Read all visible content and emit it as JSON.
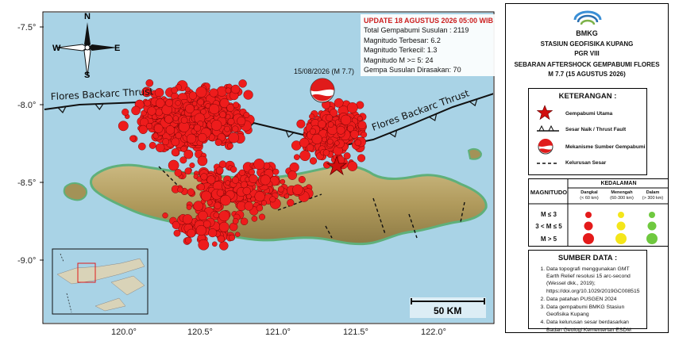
{
  "map": {
    "lat_ticks": [
      "-7.5°",
      "-8.0°",
      "-8.5°",
      "-9.0°"
    ],
    "lon_ticks": [
      "120.0°",
      "120.5°",
      "121.0°",
      "121.5°",
      "122.0°"
    ],
    "thrust_labels": [
      "Flores Backarc Thrust",
      "Flores Backarc Thrust"
    ],
    "mainshock_label": "15/08/2026 (M 7.7)",
    "scale_label": "50 KM",
    "compass": {
      "n": "N",
      "s": "S",
      "e": "E",
      "w": "W"
    },
    "colors": {
      "sea": "#a9d3e6",
      "land": "#b7a468",
      "event": "#ee1c1c"
    }
  },
  "info": {
    "title": "UPDATE 18 AGUSTUS 2026 05:00 WIB",
    "total": "Total Gempabumi Susulan : 2119",
    "max_mag": "Magnitudo Terbesar: 6.2",
    "min_mag": "Magnitudo Terkecil: 1.3",
    "mag_ge5": "Magnitudo M >= 5: 24",
    "felt": "Gempa Susulan Dirasakan: 70"
  },
  "legend": {
    "logo_text": "BMKG",
    "station": "STASIUN GEOFISIKA KUPANG",
    "region": "PGR VIII",
    "title1": "SEBARAN AFTERSHOCK GEMPABUMI FLORES",
    "title2": "M 7.7 (15 AGUSTUS 2026)",
    "keterangan_title": "KETERANGAN :",
    "items": {
      "main": "Gempabumi Utama",
      "fault": "Sesar Naik / Thrust Fault",
      "mech": "Mekanisme Sumber Gempabumi",
      "lineament": "Kelurusan Sesar"
    },
    "magnitude_header": "MAGNITUDO",
    "depth_header": "KEDALAMAN",
    "depth_cols": [
      {
        "name": "Dangkal",
        "range": "(< 60 km)",
        "color": "#e41a1a"
      },
      {
        "name": "Menengah",
        "range": "(60-300 km)",
        "color": "#f4e61a"
      },
      {
        "name": "Dalam",
        "range": "(> 300 km)",
        "color": "#6fc93f"
      }
    ],
    "mag_rows": [
      "M ≤ 3",
      "3 < M ≤ 5",
      "M > 5"
    ],
    "source_title": "SUMBER DATA :",
    "sources": [
      "Data topografi menggunakan GMT Earth Relief resolusi 15 arc-second (Wessel dkk., 2019); https://doi.org/10.1029/2019GC008515",
      "Data patahan PUSGEN 2024",
      "Data gempabumi BMKG Stasiun Geofisika Kupang",
      "Data kelurusan sesar berdasarkan Badan Geologi Kementerian ESDM"
    ]
  }
}
